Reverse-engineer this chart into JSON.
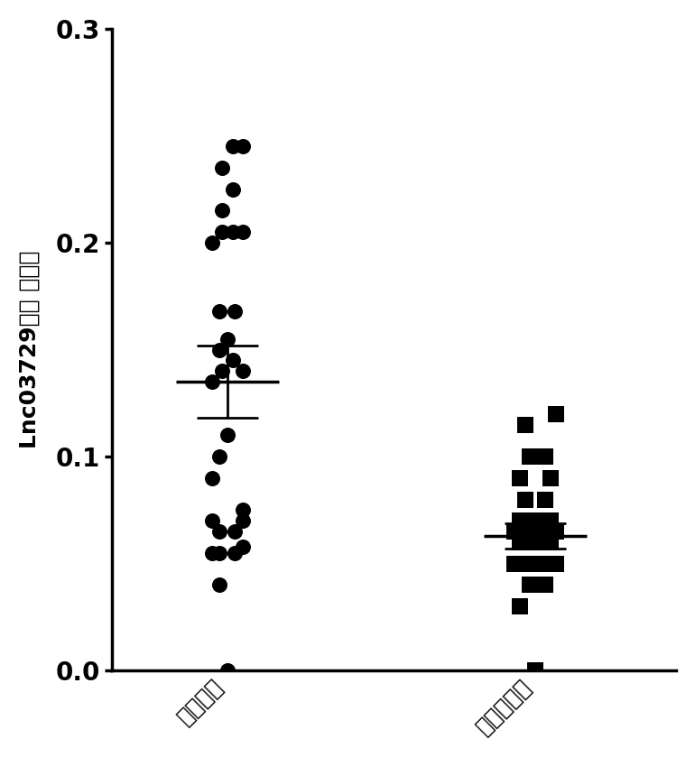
{
  "group1_name": "癌旁组织",
  "group2_name": "肺腺癌组织",
  "group1_points": [
    [
      0.0,
      0.0
    ],
    [
      -0.06,
      0.07
    ],
    [
      -0.03,
      0.065
    ],
    [
      0.03,
      0.065
    ],
    [
      0.06,
      0.07
    ],
    [
      -0.06,
      0.055
    ],
    [
      -0.03,
      0.055
    ],
    [
      0.03,
      0.055
    ],
    [
      0.06,
      0.058
    ],
    [
      -0.03,
      0.04
    ],
    [
      0.06,
      0.075
    ],
    [
      -0.06,
      0.09
    ],
    [
      -0.03,
      0.1
    ],
    [
      0.0,
      0.11
    ],
    [
      -0.06,
      0.135
    ],
    [
      -0.02,
      0.14
    ],
    [
      0.02,
      0.145
    ],
    [
      0.06,
      0.14
    ],
    [
      -0.03,
      0.15
    ],
    [
      0.0,
      0.155
    ],
    [
      -0.03,
      0.168
    ],
    [
      0.03,
      0.168
    ],
    [
      -0.06,
      0.2
    ],
    [
      -0.02,
      0.205
    ],
    [
      0.02,
      0.205
    ],
    [
      0.06,
      0.205
    ],
    [
      -0.02,
      0.215
    ],
    [
      0.02,
      0.225
    ],
    [
      -0.02,
      0.235
    ],
    [
      0.02,
      0.245
    ],
    [
      0.06,
      0.245
    ]
  ],
  "group2_points": [
    [
      0.0,
      0.0
    ],
    [
      -0.06,
      0.03
    ],
    [
      -0.02,
      0.04
    ],
    [
      0.04,
      0.04
    ],
    [
      -0.08,
      0.05
    ],
    [
      -0.04,
      0.05
    ],
    [
      0.0,
      0.05
    ],
    [
      0.04,
      0.05
    ],
    [
      0.08,
      0.05
    ],
    [
      -0.06,
      0.06
    ],
    [
      -0.02,
      0.06
    ],
    [
      0.02,
      0.06
    ],
    [
      0.06,
      0.06
    ],
    [
      -0.08,
      0.065
    ],
    [
      -0.04,
      0.065
    ],
    [
      0.0,
      0.065
    ],
    [
      0.04,
      0.065
    ],
    [
      0.08,
      0.065
    ],
    [
      -0.06,
      0.07
    ],
    [
      -0.02,
      0.07
    ],
    [
      0.02,
      0.07
    ],
    [
      0.06,
      0.07
    ],
    [
      -0.04,
      0.08
    ],
    [
      0.04,
      0.08
    ],
    [
      -0.06,
      0.09
    ],
    [
      0.06,
      0.09
    ],
    [
      -0.02,
      0.1
    ],
    [
      0.04,
      0.1
    ],
    [
      -0.04,
      0.115
    ],
    [
      0.08,
      0.12
    ]
  ],
  "group1_mean": 0.135,
  "group1_sem_lo": 0.118,
  "group1_sem_hi": 0.152,
  "group2_mean": 0.063,
  "group2_sem_lo": 0.057,
  "group2_sem_hi": 0.069,
  "ylabel_line1": "Lnc03729相对 表达量",
  "ylim": [
    0.0,
    0.3
  ],
  "yticks": [
    0.0,
    0.1,
    0.2,
    0.3
  ],
  "background_color": "#ffffff",
  "dot_color": "#000000",
  "line_color": "#000000",
  "mean_halfwidth": 0.2,
  "sem_halfwidth": 0.12
}
